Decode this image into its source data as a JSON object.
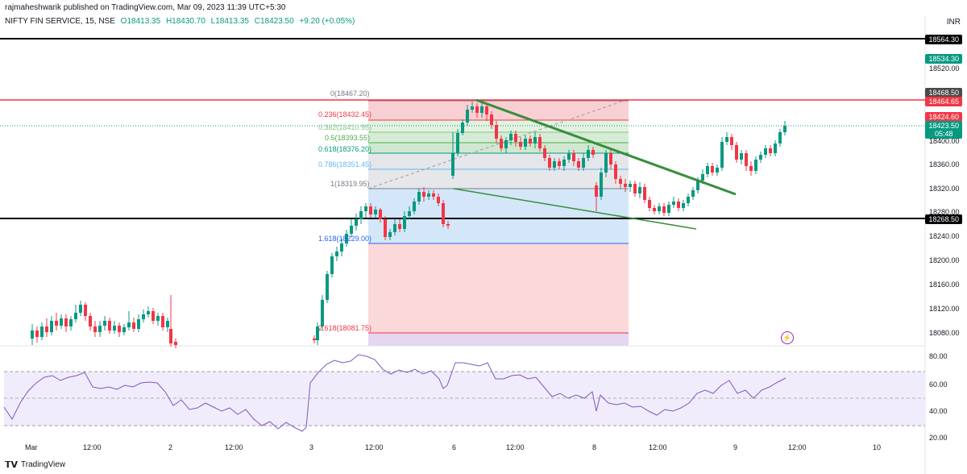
{
  "header": {
    "published": "rajmaheshwarik published on TradingView.com, Mar 09, 2023 11:39 UTC+5:30"
  },
  "symbol": {
    "name": "NIFTY FIN SERVICE, 15, NSE",
    "open": "O18413.35",
    "high": "H18430.70",
    "low": "L18413.35",
    "close": "C18423.50",
    "change": "+9.20 (+0.05%)"
  },
  "currency": "INR",
  "price_tags": {
    "level_top": "18564.30",
    "level_2": "18534.30",
    "level_3": "18468.50",
    "level_4": "18464.65",
    "level_5": "18424.60",
    "last_price": "18423.50",
    "countdown": "05:48",
    "level_bottom": "18268.50"
  },
  "price_axis": [
    "18520.00",
    "18400.00",
    "18360.00",
    "18320.00",
    "18280.00",
    "18240.00",
    "18200.00",
    "18160.00",
    "18120.00",
    "18080.00"
  ],
  "rsi_axis": [
    "80.00",
    "60.00",
    "40.00",
    "20.00"
  ],
  "time_axis": [
    "Mar",
    "12:00",
    "2",
    "12:00",
    "3",
    "12:00",
    "6",
    "12:00",
    "8",
    "12:00",
    "9",
    "12:00",
    "10"
  ],
  "fib_levels": [
    {
      "label": "0(18467.20)",
      "color": "#787b86"
    },
    {
      "label": "0.236(18432.45)",
      "color": "#f23645"
    },
    {
      "label": "0.382(18410.95)",
      "color": "#81c784"
    },
    {
      "label": "0.5(18393.55)",
      "color": "#4caf50"
    },
    {
      "label": "0.618(18376.20)",
      "color": "#089981"
    },
    {
      "label": "0.786(18351.45)",
      "color": "#64b5f6"
    },
    {
      "label": "1(18319.95)",
      "color": "#787b86"
    },
    {
      "label": "1.618(18229.00)",
      "color": "#2962ff"
    },
    {
      "label": "2.618(18081.75)",
      "color": "#f23645"
    }
  ],
  "footer": {
    "logo_text": "TradingView"
  },
  "colors": {
    "up": "#089981",
    "down": "#f23645",
    "trend": "#388e3c",
    "rsi": "#7e57c2"
  }
}
